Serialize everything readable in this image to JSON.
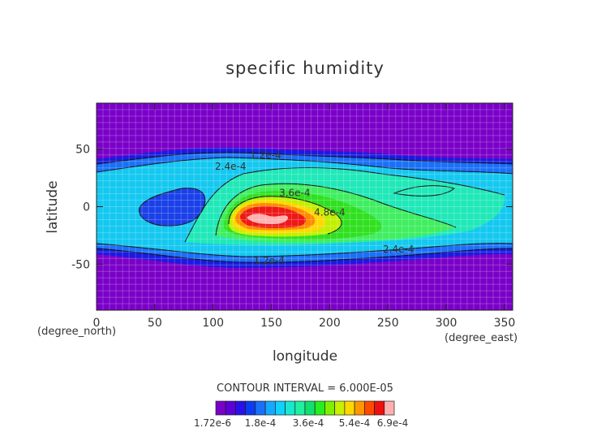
{
  "chart_data": {
    "type": "heatmap",
    "title": "specific humidity",
    "xlabel": "longitude",
    "ylabel": "latitude",
    "x_unit_label": "(degree_east)",
    "y_unit_label": "(degree_north)",
    "xlim": [
      0,
      357
    ],
    "ylim": [
      -90,
      90
    ],
    "x_ticks": [
      0,
      50,
      100,
      150,
      200,
      250,
      300,
      350
    ],
    "y_ticks": [
      -50,
      0,
      50
    ],
    "contour_interval_text": "CONTOUR INTERVAL = 6.000E-05",
    "contour_labels": [
      {
        "text": "1.2e-4",
        "lon": 145,
        "lat": 45
      },
      {
        "text": "2.4e-4",
        "lon": 115,
        "lat": 35
      },
      {
        "text": "3.6e-4",
        "lon": 170,
        "lat": 12
      },
      {
        "text": "4.8e-4",
        "lon": 200,
        "lat": -5
      },
      {
        "text": "2.4e-4",
        "lon": 259,
        "lat": -37
      },
      {
        "text": "1.2e-4",
        "lon": 148,
        "lat": -47
      }
    ],
    "colorbar": {
      "min": 1.72e-06,
      "max": 0.00069,
      "interval": 6e-05,
      "tick_labels": [
        "1.72e-6",
        "1.8e-4",
        "3.6e-4",
        "5.4e-4",
        "6.9e-4"
      ],
      "colors": [
        "#7a00c8",
        "#5b00d8",
        "#2a10e8",
        "#0a3cf0",
        "#1a70f8",
        "#14a8ff",
        "#10d0ff",
        "#18e8d0",
        "#20f0a0",
        "#10e070",
        "#28ee20",
        "#80f000",
        "#c8f000",
        "#ffd800",
        "#ff9800",
        "#ff4a00",
        "#ee1010",
        "#ffb0b0"
      ]
    }
  }
}
